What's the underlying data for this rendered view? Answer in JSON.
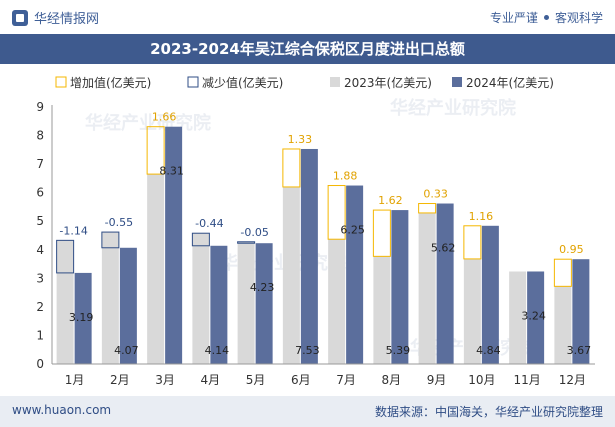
{
  "header": {
    "brand": "华经情报网",
    "slogan_left": "专业严谨",
    "slogan_right": "客观科学"
  },
  "footer": {
    "website": "www.huaon.com",
    "source": "数据来源：中国海关，华经产业研究院整理"
  },
  "chart_data": {
    "type": "bar",
    "title": "2023-2024年吴江综合保税区月度进出口总额",
    "categories": [
      "1月",
      "2月",
      "3月",
      "4月",
      "5月",
      "6月",
      "7月",
      "8月",
      "9月",
      "10月",
      "11月",
      "12月"
    ],
    "series": [
      {
        "name": "2023年(亿美元)",
        "values": [
          4.33,
          4.62,
          6.65,
          4.58,
          4.28,
          6.2,
          4.37,
          3.77,
          5.29,
          3.68,
          3.24,
          2.72
        ]
      },
      {
        "name": "2024年(亿美元)",
        "values": [
          3.19,
          4.07,
          8.31,
          4.14,
          4.23,
          7.53,
          6.25,
          5.39,
          5.62,
          4.84,
          3.24,
          3.67
        ]
      }
    ],
    "changes": [
      "-1.14",
      "-0.55",
      "1.66",
      "-0.44",
      "-0.05",
      "1.33",
      "1.88",
      "1.62",
      "0.33",
      "1.16",
      "",
      "0.95"
    ],
    "legend": [
      "增加值(亿美元)",
      "减少值(亿美元)",
      "2023年(亿美元)",
      "2024年(亿美元)"
    ],
    "y_ticks": [
      "0",
      "1",
      "2",
      "3",
      "4",
      "5",
      "6",
      "7",
      "8",
      "9"
    ],
    "ylim": [
      0,
      9
    ],
    "colors": {
      "bar2023": "#d9d9d9",
      "bar2024": "#5b6e9c",
      "increase": "#f5b700",
      "decrease": "#2f4d85",
      "axis": "#555555"
    },
    "watermark": "华经产业研究院"
  }
}
